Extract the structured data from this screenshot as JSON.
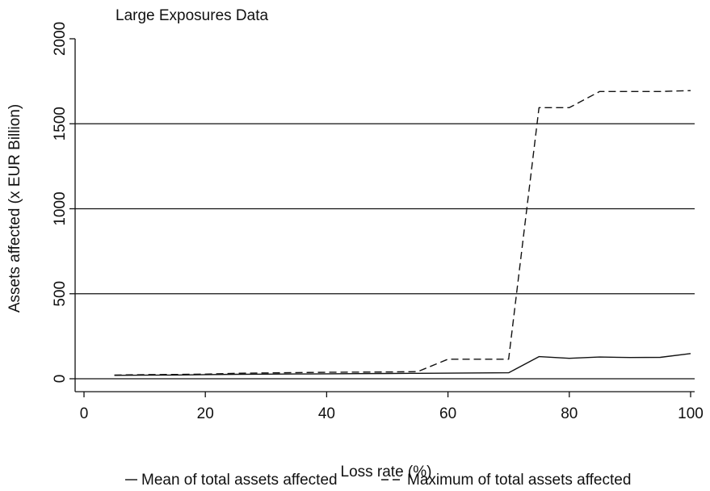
{
  "chart_data": {
    "type": "line",
    "title": "Large Exposures Data",
    "xlabel": "Loss rate (%)",
    "ylabel": "Assets affected (x EUR Billion)",
    "xlim": [
      0,
      100
    ],
    "ylim": [
      -60,
      2000
    ],
    "xticks": [
      0,
      20,
      40,
      60,
      80,
      100
    ],
    "yticks": [
      0,
      500,
      1000,
      1500,
      2000
    ],
    "xtick_labels": [
      "0",
      "20",
      "40",
      "60",
      "80",
      "100"
    ],
    "ytick_labels": [
      "0",
      "500",
      "1000",
      "1500",
      "2000"
    ],
    "grid": "horizontal",
    "legend_position": "bottom",
    "series": [
      {
        "name": "Mean of total assets affected",
        "style": "solid",
        "x": [
          5,
          10,
          15,
          20,
          25,
          30,
          35,
          40,
          45,
          50,
          55,
          60,
          65,
          70,
          75,
          80,
          85,
          90,
          95,
          100
        ],
        "y": [
          20,
          21,
          22,
          24,
          26,
          27,
          28,
          29,
          30,
          31,
          32,
          33,
          34,
          35,
          130,
          120,
          128,
          125,
          126,
          148
        ]
      },
      {
        "name": "Maximum of total assets affected",
        "style": "dashed",
        "x": [
          5,
          10,
          15,
          20,
          25,
          30,
          35,
          40,
          45,
          50,
          55,
          60,
          65,
          70,
          75,
          80,
          85,
          90,
          95,
          100
        ],
        "y": [
          22,
          24,
          25,
          27,
          32,
          34,
          36,
          38,
          39,
          40,
          42,
          115,
          115,
          115,
          1595,
          1595,
          1690,
          1690,
          1690,
          1695
        ]
      }
    ],
    "legend": [
      "Mean of total assets affected",
      "Maximum of total assets affected"
    ],
    "colors": {
      "line": "#111111",
      "grid": "#111111",
      "axis": "#111111"
    }
  }
}
